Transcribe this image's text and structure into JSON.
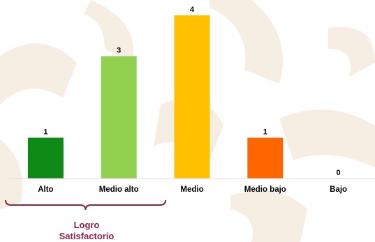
{
  "chart_data": {
    "type": "bar",
    "categories": [
      "Alto",
      "Medio alto",
      "Medio",
      "Medio bajo",
      "Bajo"
    ],
    "values": [
      1,
      3,
      4,
      1,
      0
    ],
    "bar_colors": [
      "#0e8a16",
      "#92d050",
      "#ffc000",
      "#ff6600",
      "#ffffff"
    ],
    "ylim": [
      0,
      4
    ],
    "grid": false,
    "title": "",
    "xlabel": "",
    "ylabel": ""
  },
  "annotation": {
    "group_label_line1": "Logro",
    "group_label_line2": "Satisfactorio",
    "brace_color": "#8b2346",
    "label_color": "#8b2346"
  },
  "background": {
    "pattern_color": "#f7eee3"
  }
}
